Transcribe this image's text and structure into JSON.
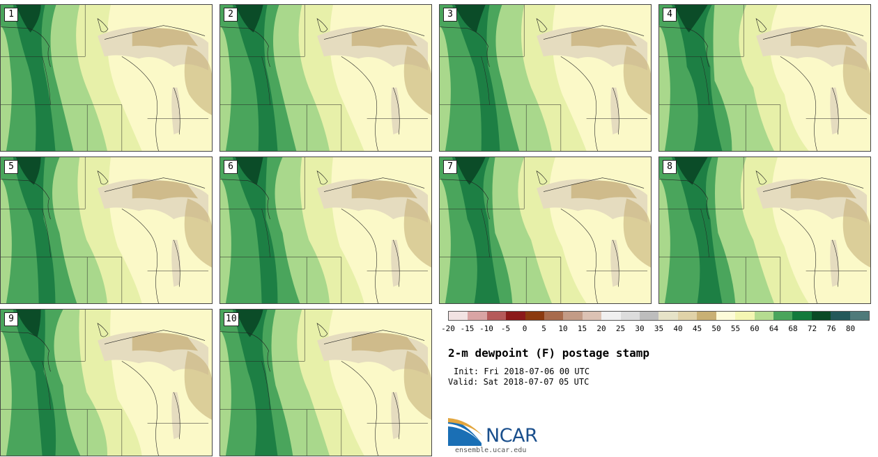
{
  "product": {
    "title": "2-m dewpoint (F) postage stamp",
    "init": "Init: Fri 2018-07-06 00 UTC",
    "valid": "Valid: Sat 2018-07-07 05 UTC",
    "logo_text": "NCAR",
    "site": "ensemble.ucar.edu"
  },
  "panels": [
    {
      "label": "1"
    },
    {
      "label": "2"
    },
    {
      "label": "3"
    },
    {
      "label": "4"
    },
    {
      "label": "5"
    },
    {
      "label": "6"
    },
    {
      "label": "7"
    },
    {
      "label": "8"
    },
    {
      "label": "9"
    },
    {
      "label": "10"
    }
  ],
  "legend": {
    "ticks": [
      "-20",
      "-15",
      "-10",
      "-5",
      "0",
      "5",
      "10",
      "15",
      "20",
      "25",
      "30",
      "35",
      "40",
      "45",
      "50",
      "55",
      "60",
      "64",
      "68",
      "72",
      "76",
      "80"
    ],
    "colors": [
      "#f2e3e3",
      "#d9a4a4",
      "#b55a5a",
      "#8b1a1a",
      "#8b3a0f",
      "#a86b4c",
      "#c39b86",
      "#dcc2b4",
      "#f0f0f0",
      "#dcdcdc",
      "#bdbdbd",
      "#e6e3c8",
      "#e0d2a8",
      "#c9b074",
      "#fdfbd9",
      "#f4f6b3",
      "#b5dc90",
      "#4aa55c",
      "#127a3c",
      "#0a4a25",
      "#23585a",
      "#4f7a7a"
    ]
  },
  "map_colors": {
    "c55": "#fbf9c8",
    "c60": "#e7f0a9",
    "c64": "#a9d88c",
    "c68": "#4aa55c",
    "c72": "#15783f",
    "c76": "#0b4c28",
    "c45": "#c7b07a",
    "c40": "#e5dcbf",
    "lines": "#222222"
  }
}
